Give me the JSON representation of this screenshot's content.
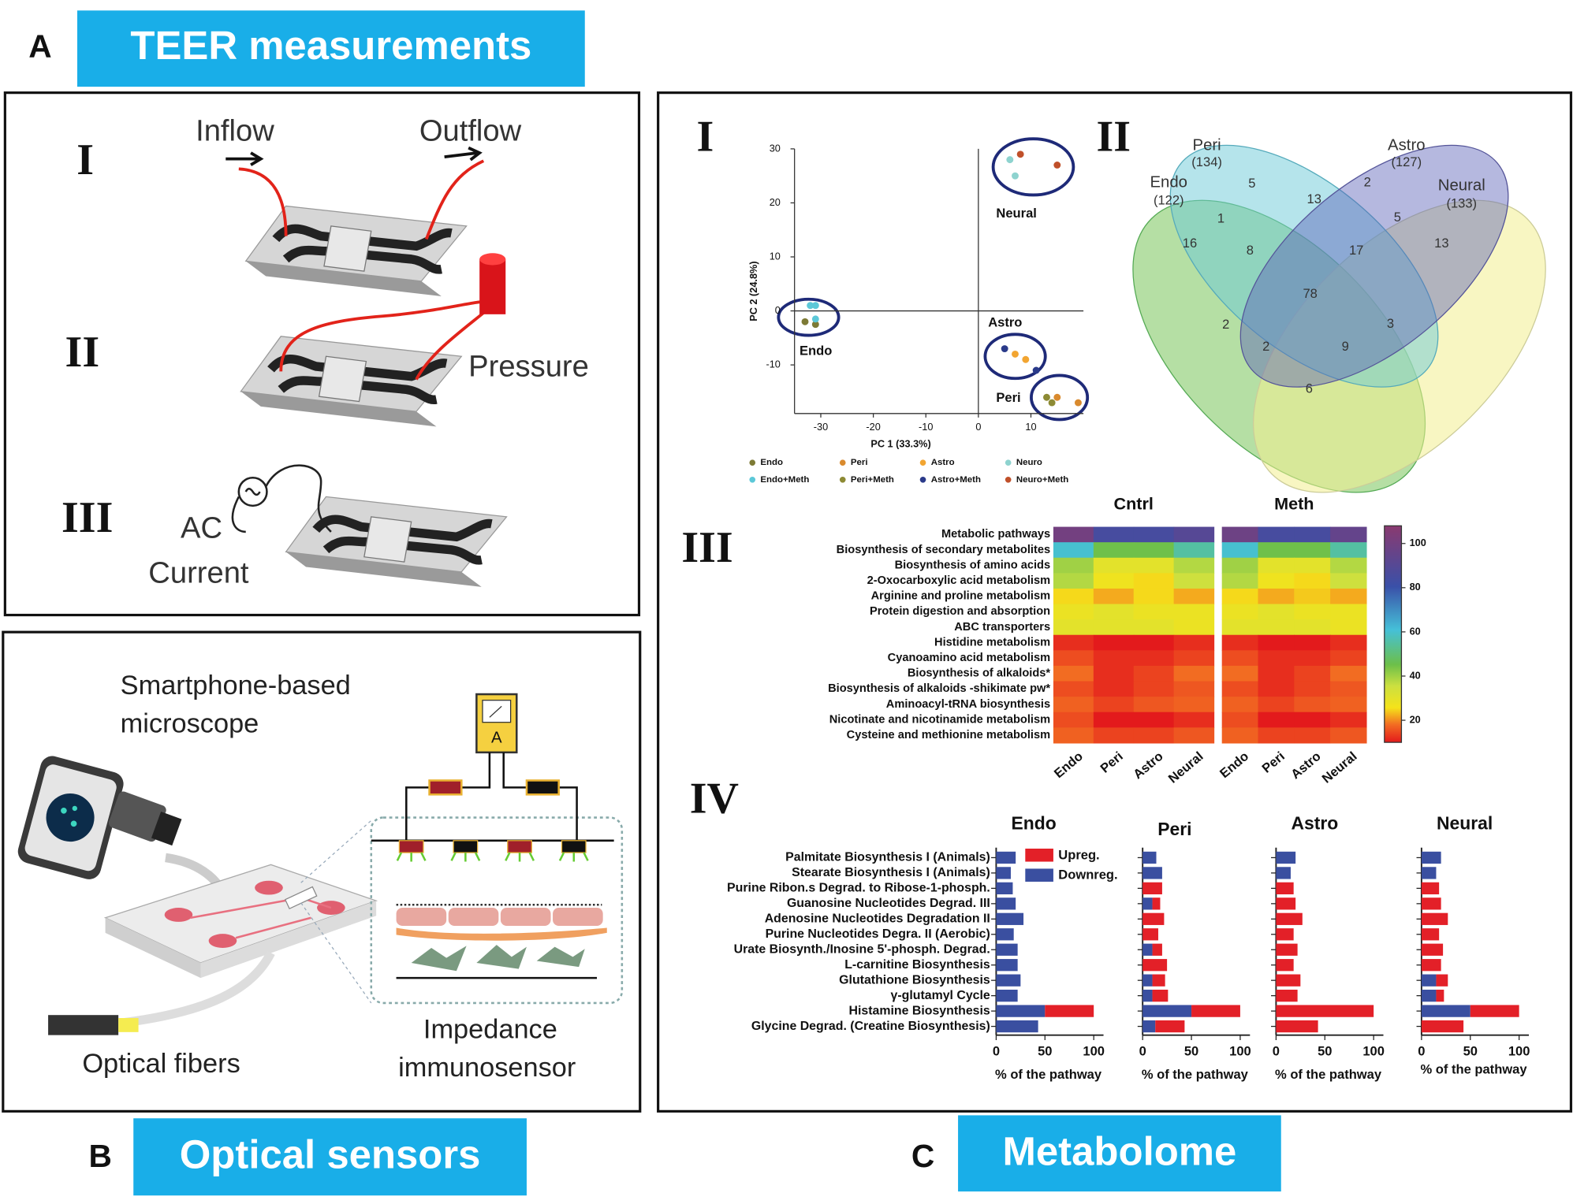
{
  "panel_a": {
    "label": "A",
    "title": "TEER measurements",
    "steps": [
      "I",
      "II",
      "III"
    ],
    "inflow": "Inflow",
    "outflow": "Outflow",
    "pressure": "Pressure",
    "ac": [
      "AC",
      "Current"
    ]
  },
  "panel_b": {
    "label": "B",
    "title": "Optical sensors",
    "microscope": [
      "Smartphone-based",
      "microscope"
    ],
    "meter": "A",
    "fibers": "Optical fibers",
    "sensor": [
      "Impedance",
      "immunosensor"
    ]
  },
  "panel_c": {
    "label": "C",
    "title": "Metabolome",
    "subpanels": [
      "I",
      "II",
      "III",
      "IV"
    ]
  },
  "venn": {
    "sets": [
      {
        "name": "Peri",
        "count": "(134)"
      },
      {
        "name": "Astro",
        "count": "(127)"
      },
      {
        "name": "Endo",
        "count": "(122)"
      },
      {
        "name": "Neural",
        "count": "(133)"
      }
    ],
    "regions": [
      5,
      2,
      13,
      1,
      5,
      16,
      8,
      17,
      13,
      78,
      2,
      3,
      2,
      9,
      6
    ]
  },
  "chart_data": [
    {
      "type": "scatter",
      "xlabel": "PC 1 (33.3%)",
      "ylabel": "PC 2 (24.8%)",
      "xlim": [
        -35,
        20
      ],
      "ylim": [
        -19,
        30
      ],
      "xticks": [
        -30,
        -20,
        -10,
        0,
        10
      ],
      "yticks": [
        -10,
        0,
        10,
        20,
        30
      ],
      "annotations": [
        "Neural",
        "Astro",
        "Endo",
        "Peri"
      ],
      "series": [
        {
          "name": "Endo",
          "color": "#7d7a35",
          "x": [
            -33,
            -31
          ],
          "y": [
            -2,
            -2.5
          ]
        },
        {
          "name": "Peri",
          "color": "#d98a2e",
          "x": [
            15,
            19
          ],
          "y": [
            -16,
            -17
          ]
        },
        {
          "name": "Astro",
          "color": "#f2a531",
          "x": [
            7,
            9
          ],
          "y": [
            -8,
            -9
          ]
        },
        {
          "name": "Neuro",
          "color": "#8ed3cf",
          "x": [
            6,
            7
          ],
          "y": [
            28,
            25
          ]
        },
        {
          "name": "Endo+Meth",
          "color": "#5cc8d8",
          "x": [
            -32,
            -31,
            -31
          ],
          "y": [
            1,
            1,
            -1.5
          ]
        },
        {
          "name": "Peri+Meth",
          "color": "#8d8a34",
          "x": [
            13,
            14
          ],
          "y": [
            -16,
            -17
          ]
        },
        {
          "name": "Astro+Meth",
          "color": "#2a3a8a",
          "x": [
            5,
            11
          ],
          "y": [
            -7,
            -11
          ]
        },
        {
          "name": "Neuro+Meth",
          "color": "#c0502a",
          "x": [
            8,
            15
          ],
          "y": [
            29,
            27
          ]
        }
      ]
    },
    {
      "type": "heatmap",
      "groups": [
        "Cntrl",
        "Meth"
      ],
      "columns": [
        "Endo",
        "Peri",
        "Astro",
        "Neural"
      ],
      "rows": [
        "Metabolic pathways",
        "Biosynthesis of secondary metabolites",
        "Biosynthesis of amino acids",
        "2-Oxocarboxylic acid metabolism",
        "Arginine and proline metabolism",
        "Protein digestion and absorption",
        "ABC transporters",
        "Histidine metabolism",
        "Cyanoamino acid metabolism",
        "Biosynthesis of alkaloids*",
        "Biosynthesis of alkaloids -shikimate pw*",
        "Aminoacyl-tRNA biosynthesis",
        "Nicotinate and nicotinamide metabolism",
        "Cysteine and methionine metabolism"
      ],
      "values": [
        [
          100,
          85,
          85,
          90,
          98,
          85,
          85,
          95
        ],
        [
          60,
          45,
          45,
          55,
          60,
          45,
          45,
          55
        ],
        [
          40,
          30,
          30,
          38,
          40,
          30,
          30,
          38
        ],
        [
          38,
          27,
          25,
          35,
          38,
          27,
          25,
          35
        ],
        [
          25,
          22,
          25,
          22,
          25,
          22,
          24,
          22
        ],
        [
          28,
          30,
          28,
          28,
          28,
          30,
          28,
          28
        ],
        [
          30,
          30,
          30,
          28,
          30,
          30,
          30,
          28
        ],
        [
          12,
          10,
          10,
          12,
          12,
          10,
          10,
          12
        ],
        [
          15,
          12,
          12,
          14,
          15,
          12,
          12,
          14
        ],
        [
          18,
          12,
          14,
          18,
          18,
          12,
          14,
          18
        ],
        [
          15,
          12,
          14,
          16,
          15,
          12,
          14,
          16
        ],
        [
          17,
          14,
          16,
          17,
          17,
          14,
          16,
          17
        ],
        [
          15,
          10,
          10,
          12,
          15,
          10,
          10,
          12
        ],
        [
          17,
          14,
          14,
          16,
          17,
          14,
          14,
          16
        ]
      ],
      "clim": [
        10,
        108
      ],
      "cticks": [
        20,
        40,
        60,
        80,
        100
      ]
    },
    {
      "type": "barh_stacked",
      "title": "Endo",
      "xlabel": "% of the pathway",
      "xlim": [
        0,
        110
      ],
      "xticks": [
        0,
        50,
        100
      ],
      "categories": [
        "Palmitate Biosynthesis I (Animals)",
        "Stearate Biosynthesis I (Animals)",
        "Purine Ribon.s Degrad. to Ribose-1-phosph.",
        "Guanosine Nucleotides Degrad. III",
        "Adenosine Nucleotides Degradation II",
        "Purine Nucleotides Degra. II (Aerobic)",
        "Urate Biosynth./Inosine 5'-phosph. Degrad.",
        "L-carnitine Biosynthesis",
        "Glutathione Biosynthesis",
        "γ-glutamyl Cycle",
        "Histamine Biosynthesis",
        "Glycine Degrad. (Creatine Biosynthesis)"
      ],
      "series": [
        {
          "name": "Downreg.",
          "color": "#3a4fa0",
          "values": [
            20,
            15,
            17,
            20,
            28,
            18,
            22,
            22,
            25,
            22,
            50,
            43
          ]
        },
        {
          "name": "Upreg.",
          "color": "#e32028",
          "values": [
            0,
            0,
            0,
            0,
            0,
            0,
            0,
            0,
            0,
            0,
            50,
            0
          ]
        }
      ]
    },
    {
      "type": "barh_stacked",
      "title": "Peri",
      "xlabel": "% of the pathway",
      "xlim": [
        0,
        110
      ],
      "xticks": [
        0,
        50,
        100
      ],
      "series": [
        {
          "color": "#3a4fa0",
          "values": [
            14,
            20,
            0,
            10,
            0,
            0,
            10,
            0,
            10,
            10,
            50,
            13
          ]
        },
        {
          "color": "#e32028",
          "values": [
            0,
            0,
            20,
            8,
            22,
            16,
            10,
            25,
            13,
            16,
            50,
            30
          ]
        }
      ]
    },
    {
      "type": "barh_stacked",
      "title": "Astro",
      "xlabel": "% of the pathway",
      "xlim": [
        0,
        110
      ],
      "xticks": [
        0,
        50,
        100
      ],
      "series": [
        {
          "color": "#3a4fa0",
          "values": [
            20,
            15,
            0,
            0,
            0,
            0,
            0,
            0,
            0,
            0,
            0,
            0
          ]
        },
        {
          "color": "#e32028",
          "values": [
            0,
            0,
            18,
            20,
            27,
            18,
            22,
            18,
            25,
            22,
            100,
            43
          ]
        }
      ]
    },
    {
      "type": "barh_stacked",
      "title": "Neural",
      "xlabel": "% of the pathway",
      "xlim": [
        0,
        110
      ],
      "xticks": [
        0,
        50,
        100
      ],
      "series": [
        {
          "color": "#3a4fa0",
          "values": [
            20,
            15,
            0,
            0,
            0,
            0,
            0,
            0,
            15,
            15,
            50,
            0
          ]
        },
        {
          "color": "#e32028",
          "values": [
            0,
            0,
            18,
            20,
            27,
            18,
            22,
            20,
            12,
            8,
            50,
            43
          ]
        }
      ]
    }
  ]
}
